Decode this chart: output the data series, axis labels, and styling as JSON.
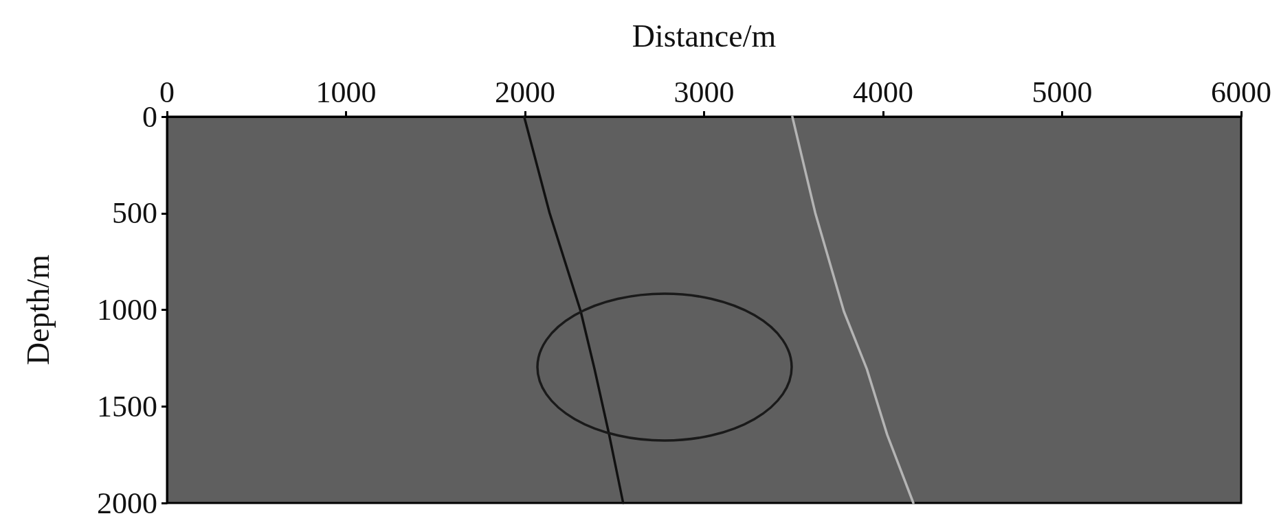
{
  "chart_data": {
    "type": "line",
    "xlabel": "Distance/m",
    "ylabel": "Depth/m",
    "xlim": [
      0,
      6000
    ],
    "xticks": [
      0,
      1000,
      2000,
      3000,
      4000,
      5000,
      6000
    ],
    "ylim": [
      2000,
      0
    ],
    "yticks": [
      0,
      500,
      1000,
      1500,
      2000
    ],
    "grid": false,
    "marker": "none",
    "line_style": "solid",
    "series": [
      {
        "color": "#111111",
        "x": [
          1995,
          2137,
          2311,
          2388,
          2470,
          2548
        ],
        "values": [
          0,
          498,
          1008,
          1306,
          1647,
          2000
        ]
      },
      {
        "color": "#b4b4b4",
        "x": [
          3493,
          3621,
          3781,
          3909,
          4023,
          4169
        ],
        "values": [
          0,
          498,
          1008,
          1306,
          1647,
          2000
        ]
      }
    ]
  }
}
